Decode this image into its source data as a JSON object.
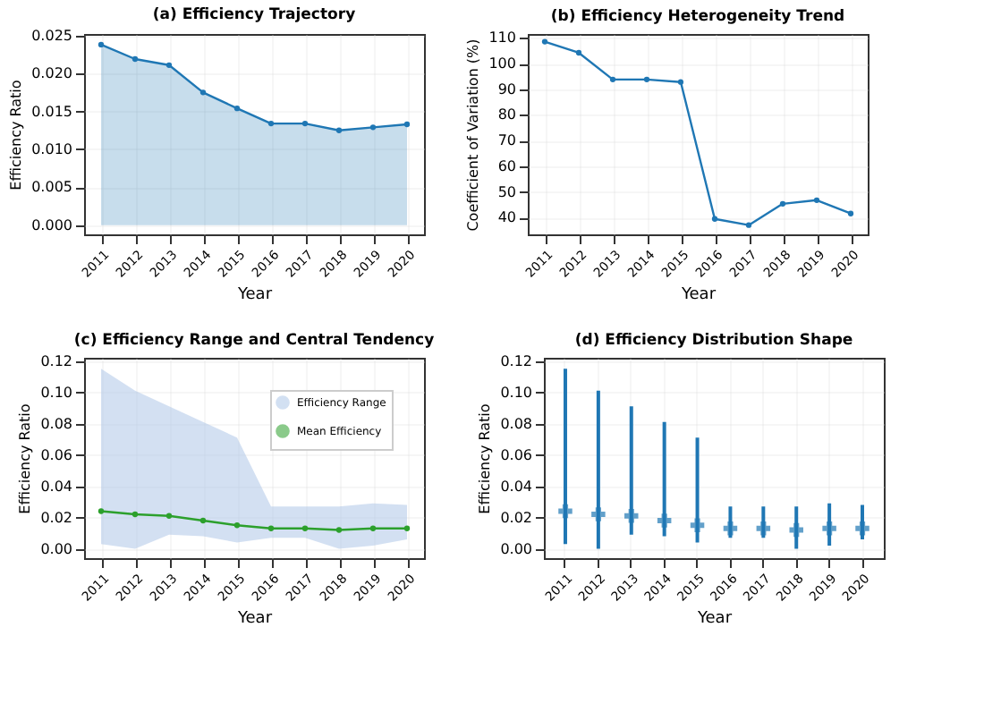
{
  "chart_data": [
    {
      "type": "area",
      "title": "(a) Efficiency Trajectory",
      "xlabel": "Year",
      "ylabel": "Efficiency Ratio",
      "categories": [
        "2011",
        "2012",
        "2013",
        "2014",
        "2015",
        "2016",
        "2017",
        "2018",
        "2019",
        "2020"
      ],
      "series": [
        {
          "color": "#1f77b4",
          "values": [
            0.0238,
            0.0219,
            0.0211,
            0.0175,
            0.0154,
            0.0134,
            0.0134,
            0.0125,
            0.0129,
            0.0133
          ]
        }
      ],
      "marker": "circle",
      "ylim": [
        -0.0012,
        0.0252
      ],
      "yticks": [
        {
          "value": 0,
          "label": "0.000"
        },
        {
          "value": 0.005,
          "label": "0.005"
        },
        {
          "value": 0.01,
          "label": "0.010"
        },
        {
          "value": 0.015,
          "label": "0.015"
        },
        {
          "value": 0.02,
          "label": "0.020"
        },
        {
          "value": 0.025,
          "label": "0.025"
        }
      ],
      "grid": true
    },
    {
      "type": "line",
      "title": "(b) Efficiency Heterogeneity Trend",
      "xlabel": "Year",
      "ylabel": "Coefficient of Variation (%)",
      "categories": [
        "2011",
        "2012",
        "2013",
        "2014",
        "2015",
        "2016",
        "2017",
        "2018",
        "2019",
        "2020"
      ],
      "series": [
        {
          "color": "#1f77b4",
          "values": [
            108.5,
            104.2,
            93.8,
            93.8,
            92.8,
            39.5,
            37.1,
            45.4,
            46.8,
            41.6
          ]
        }
      ],
      "marker": "circle",
      "ylim": [
        33.5,
        111.5
      ],
      "yticks": [
        40,
        50,
        60,
        70,
        80,
        90,
        100,
        110
      ],
      "grid": true
    },
    {
      "type": "line",
      "title": "(c) Efficiency Range and Central Tendency",
      "xlabel": "Year",
      "ylabel": "Efficiency Ratio",
      "categories": [
        "2011",
        "2012",
        "2013",
        "2014",
        "2015",
        "2016",
        "2017",
        "2018",
        "2019",
        "2020"
      ],
      "series": [
        {
          "type": "area",
          "name": "Efficiency Range",
          "color": "#aec7e8",
          "values": [
            null,
            null,
            null,
            null,
            null,
            null,
            null,
            null,
            null,
            null
          ],
          "lower": [
            0.003,
            0.0,
            0.009,
            0.008,
            0.004,
            0.007,
            0.007,
            0.0,
            0.002,
            0.006
          ],
          "upper": [
            0.115,
            0.101,
            0.091,
            0.081,
            0.071,
            0.027,
            0.027,
            0.027,
            0.029,
            0.028
          ]
        },
        {
          "name": "Mean Efficiency",
          "color": "#2ca02c",
          "marker": "circle",
          "values": [
            0.024,
            0.022,
            0.021,
            0.018,
            0.015,
            0.013,
            0.013,
            0.012,
            0.013,
            0.013
          ]
        }
      ],
      "ylim": [
        -0.006,
        0.122
      ],
      "yticks": [
        {
          "value": 0,
          "label": "0.00"
        },
        {
          "value": 0.02,
          "label": "0.02"
        },
        {
          "value": 0.04,
          "label": "0.04"
        },
        {
          "value": 0.06,
          "label": "0.06"
        },
        {
          "value": 0.08,
          "label": "0.08"
        },
        {
          "value": 0.1,
          "label": "0.10"
        },
        {
          "value": 0.12,
          "label": "0.12"
        }
      ],
      "grid": true,
      "legend": "top right"
    },
    {
      "type": "bar",
      "title": "(d) Efficiency Distribution Shape",
      "xlabel": "Year",
      "ylabel": "Efficiency Ratio",
      "categories": [
        "2011",
        "2012",
        "2013",
        "2014",
        "2015",
        "2016",
        "2017",
        "2018",
        "2019",
        "2020"
      ],
      "series": [
        {
          "color": "#1f77b4",
          "base": [
            0.003,
            0.0,
            0.009,
            0.008,
            0.004,
            0.007,
            0.007,
            0.0,
            0.002,
            0.006
          ],
          "values": [
            0.112,
            0.101,
            0.082,
            0.073,
            0.067,
            0.02,
            0.02,
            0.027,
            0.027,
            0.022
          ]
        },
        {
          "type": "scatter",
          "color": "#1f77b4",
          "marker": "cross",
          "values": [
            0.024,
            0.022,
            0.021,
            0.018,
            0.015,
            0.013,
            0.013,
            0.012,
            0.013,
            0.013
          ]
        }
      ],
      "ylim": [
        -0.006,
        0.122
      ],
      "yticks": [
        {
          "value": 0,
          "label": "0.00"
        },
        {
          "value": 0.02,
          "label": "0.02"
        },
        {
          "value": 0.04,
          "label": "0.04"
        },
        {
          "value": 0.06,
          "label": "0.06"
        },
        {
          "value": 0.08,
          "label": "0.08"
        },
        {
          "value": 0.1,
          "label": "0.10"
        },
        {
          "value": 0.12,
          "label": "0.12"
        }
      ],
      "grid": true
    }
  ]
}
